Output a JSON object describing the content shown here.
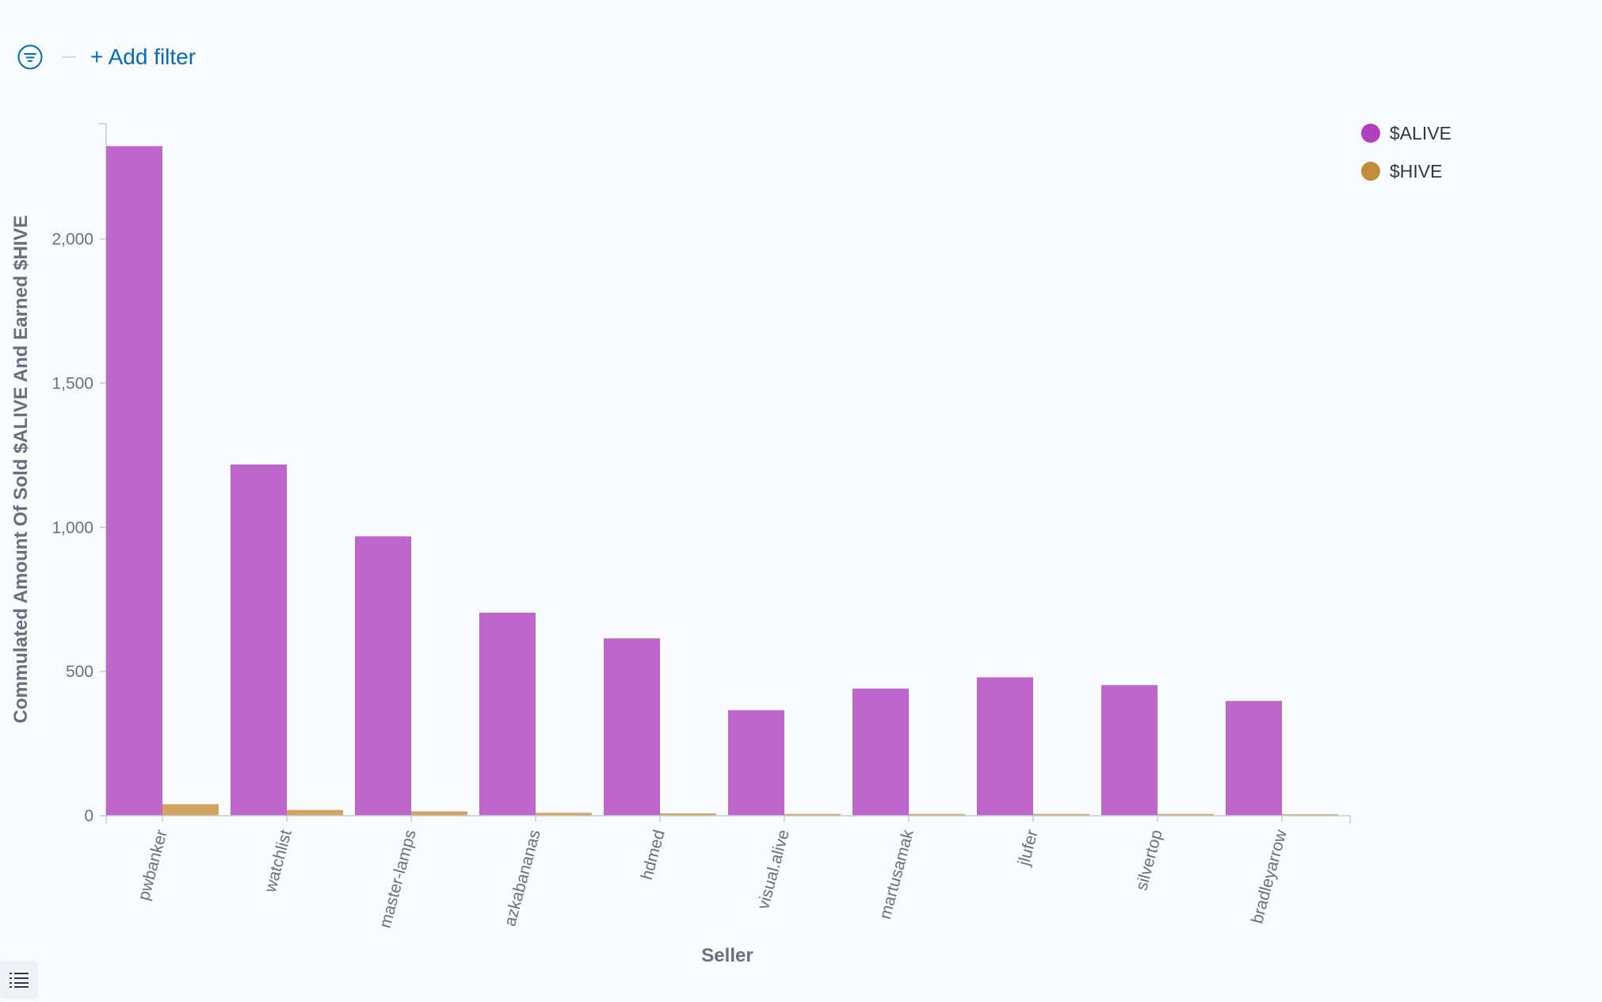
{
  "filter_bar": {
    "filter_icon": "filter-icon",
    "add_filter_label": "+ Add filter"
  },
  "legend_toggle_icon": "list-icon",
  "chart_data": {
    "type": "bar",
    "xlabel": "Seller",
    "ylabel": "Commulated Amount Of Sold $ALIVE And Earned $HIVE",
    "categories": [
      "pwbanker",
      "watchlist",
      "master-lamps",
      "azkabananas",
      "hdmed",
      "visual.alive",
      "martusamak",
      "jlufer",
      "silvertop",
      "bradleyarrow"
    ],
    "series": [
      {
        "name": "$ALIVE",
        "color": "#bd66cc",
        "legend_color": "#b13fc2",
        "values": [
          2322,
          1218,
          969,
          704,
          615,
          366,
          441,
          480,
          453,
          398
        ]
      },
      {
        "name": "$HIVE",
        "color": "#d1a561",
        "legend_color": "#c28c3f",
        "values": [
          40,
          20,
          15,
          10,
          8,
          6,
          6,
          6,
          6,
          5
        ]
      }
    ],
    "yticks": [
      0,
      500,
      1000,
      1500,
      2000
    ],
    "ytick_labels": [
      "0",
      "500",
      "1,000",
      "1,500",
      "2,000"
    ],
    "ylim": [
      0,
      2400
    ],
    "legend_position": "top-right",
    "grid": false
  }
}
